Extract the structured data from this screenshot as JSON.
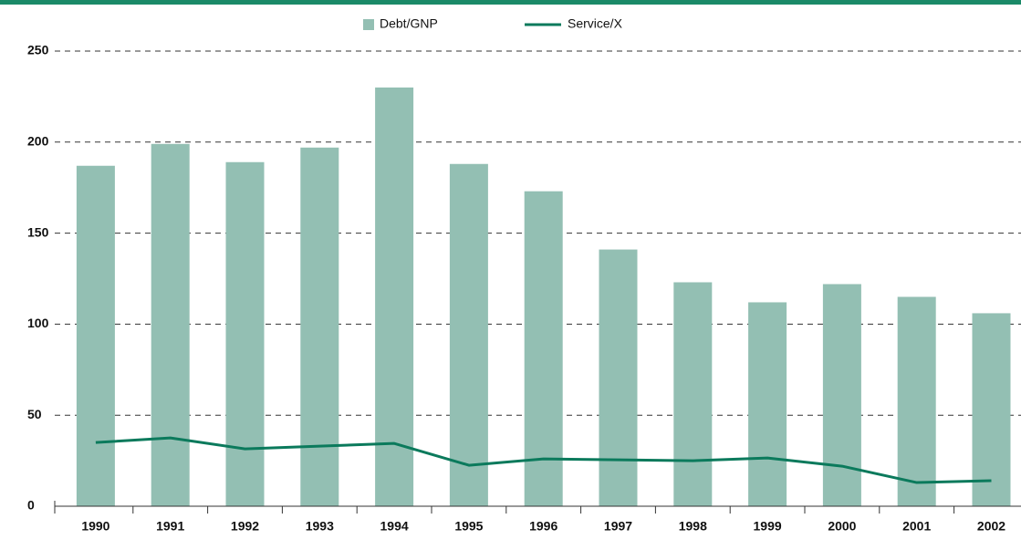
{
  "chart_data": {
    "type": "bar_line",
    "categories": [
      "1990",
      "1991",
      "1992",
      "1993",
      "1994",
      "1995",
      "1996",
      "1997",
      "1998",
      "1999",
      "2000",
      "2001",
      "2002"
    ],
    "series": [
      {
        "name": "Debt/GNP",
        "type": "bar",
        "color": "#93bfb3",
        "values": [
          187,
          199,
          189,
          197,
          230,
          188,
          173,
          141,
          123,
          112,
          122,
          115,
          106
        ]
      },
      {
        "name": "Service/X",
        "type": "line",
        "color": "#0b7a5c",
        "values": [
          35,
          37.5,
          31.5,
          33,
          34.5,
          22.5,
          26,
          25.5,
          25,
          26.5,
          22,
          13,
          14
        ]
      }
    ],
    "ylim": [
      0,
      250
    ],
    "yticks": [
      0,
      50,
      100,
      150,
      200,
      250
    ],
    "grid": true,
    "legend": "top"
  }
}
